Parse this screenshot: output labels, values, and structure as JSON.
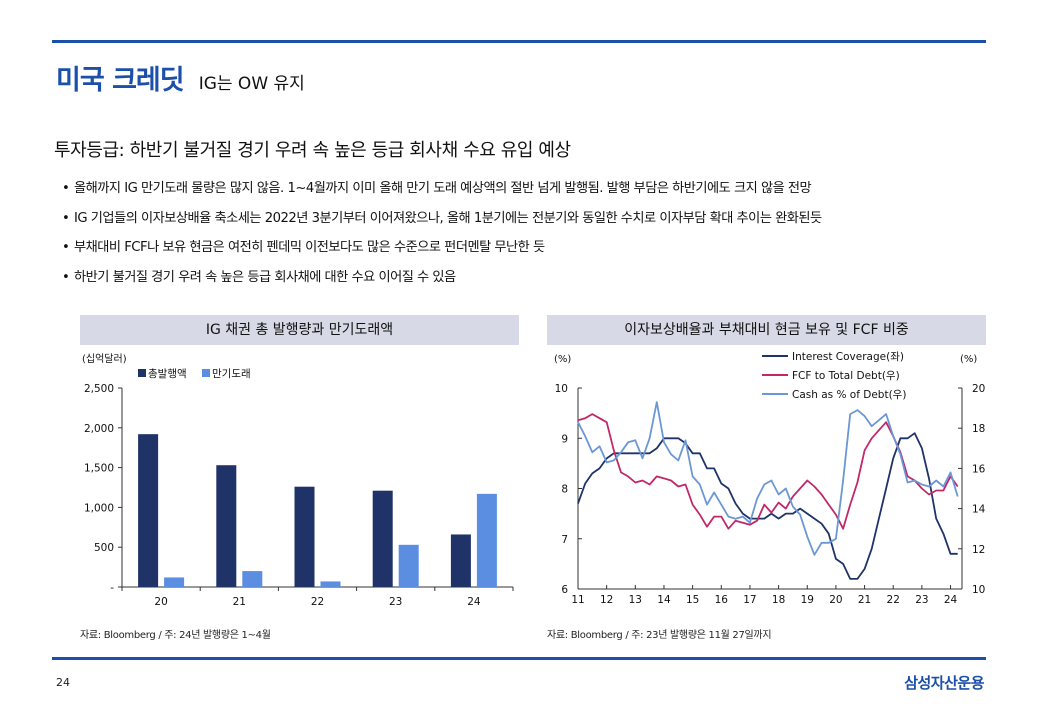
{
  "header": {
    "main_title": "미국 크레딧",
    "sub_title": "IG는 OW 유지"
  },
  "headline": "투자등급: 하반기 불거질 경기 우려 속 높은 등급 회사채 수요 유입 예상",
  "bullets": [
    {
      "marker": "•",
      "text": "올해까지 IG 만기도래 물량은 많지 않음.  1~4월까지 이미 올해 만기 도래 예상액의 절반 넘게 발행됨. 발행 부담은 하반기에도 크지 않을 전망"
    },
    {
      "marker": "•",
      "text": "IG 기업들의 이자보상배율 축소세는 2022년 3분기부터 이어져왔으나, 올해 1분기에는 전분기와 동일한 수치로 이자부담 확대 추이는 완화된듯"
    },
    {
      "marker": "•",
      "text": "부채대비 FCF나 보유 현금은 여전히 펜데믹 이전보다도 많은 수준으로 펀더멘탈 무난한 듯"
    },
    {
      "marker": "•",
      "text": "하반기 불거질 경기 우려 속 높은 등급 회사채에 대한 수요 이어질 수 있음"
    }
  ],
  "colors": {
    "brand_blue": "#1c4fa8",
    "navy": "#1f3368",
    "light_blue": "#5b8ee0",
    "crimson": "#c0286a",
    "steel_blue": "#6b97d4",
    "title_bg": "#d8d9e6"
  },
  "chart_data": [
    {
      "type": "bar",
      "title": "IG 채권 총 발행량과 만기도래액",
      "unit_label": "(십억달러)",
      "categories": [
        "20",
        "21",
        "22",
        "23",
        "24"
      ],
      "series": [
        {
          "name": "총발행액",
          "color": "#1f3368",
          "values": [
            1920,
            1530,
            1260,
            1210,
            660
          ]
        },
        {
          "name": "만기도래",
          "color": "#5b8ee0",
          "values": [
            120,
            200,
            70,
            530,
            1170
          ]
        }
      ],
      "ylim": [
        0,
        2500
      ],
      "yticks": [
        0,
        500,
        1000,
        1500,
        2000,
        2500
      ],
      "ytick_labels": [
        "-",
        "500",
        "1,000",
        "1,500",
        "2,000",
        "2,500"
      ],
      "source": "자료: Bloomberg / 주: 24년 발행량은 1~4월"
    },
    {
      "type": "line",
      "title": "이자보상배율과 부채대비 현금 보유 및 FCF 비중",
      "left_unit": "(%)",
      "right_unit": "(%)",
      "x_range": [
        11,
        24.4
      ],
      "x_ticks": [
        "11",
        "12",
        "13",
        "14",
        "15",
        "16",
        "17",
        "18",
        "19",
        "20",
        "21",
        "22",
        "23",
        "24"
      ],
      "y_left": {
        "range": [
          6,
          10
        ],
        "ticks": [
          "6",
          "7",
          "8",
          "9",
          "10"
        ]
      },
      "y_right": {
        "range": [
          10,
          20
        ],
        "ticks": [
          "10",
          "12",
          "14",
          "16",
          "18",
          "20"
        ]
      },
      "series": [
        {
          "name": "Interest Coverage(좌)",
          "axis": "left",
          "color": "#1f3368",
          "x": [
            11,
            11.25,
            11.5,
            11.75,
            12,
            12.25,
            12.5,
            12.75,
            13,
            13.25,
            13.5,
            13.75,
            14,
            14.25,
            14.5,
            14.75,
            15,
            15.25,
            15.5,
            15.75,
            16,
            16.25,
            16.5,
            16.75,
            17,
            17.25,
            17.5,
            17.75,
            18,
            18.25,
            18.5,
            18.75,
            19,
            19.25,
            19.5,
            19.75,
            20,
            20.25,
            20.5,
            20.75,
            21,
            21.25,
            21.5,
            21.75,
            22,
            22.25,
            22.5,
            22.75,
            23,
            23.25,
            23.5,
            23.75,
            24,
            24.25
          ],
          "values": [
            7.7,
            8.1,
            8.3,
            8.4,
            8.6,
            8.7,
            8.7,
            8.7,
            8.7,
            8.7,
            8.7,
            8.8,
            9.0,
            9.0,
            9.0,
            8.9,
            8.7,
            8.7,
            8.4,
            8.4,
            8.1,
            8.0,
            7.7,
            7.5,
            7.4,
            7.4,
            7.4,
            7.5,
            7.4,
            7.5,
            7.5,
            7.6,
            7.5,
            7.4,
            7.3,
            7.1,
            6.6,
            6.5,
            6.2,
            6.2,
            6.4,
            6.8,
            7.4,
            8.0,
            8.6,
            9.0,
            9.0,
            9.1,
            8.8,
            8.2,
            7.4,
            7.1,
            6.7,
            6.7
          ]
        },
        {
          "name": "FCF to Total Debt(우)",
          "axis": "right",
          "color": "#c0286a",
          "x": [
            11,
            11.25,
            11.5,
            11.75,
            12,
            12.25,
            12.5,
            12.75,
            13,
            13.25,
            13.5,
            13.75,
            14,
            14.25,
            14.5,
            14.75,
            15,
            15.25,
            15.5,
            15.75,
            16,
            16.25,
            16.5,
            16.75,
            17,
            17.25,
            17.5,
            17.75,
            18,
            18.25,
            18.5,
            18.75,
            19,
            19.25,
            19.5,
            19.75,
            20,
            20.25,
            20.5,
            20.75,
            21,
            21.25,
            21.5,
            21.75,
            22,
            22.25,
            22.5,
            22.75,
            23,
            23.25,
            23.5,
            23.75,
            24,
            24.25
          ],
          "values": [
            18.4,
            18.5,
            18.7,
            18.5,
            18.3,
            16.9,
            15.8,
            15.6,
            15.3,
            15.4,
            15.2,
            15.6,
            15.5,
            15.4,
            15.1,
            15.2,
            14.2,
            13.7,
            13.1,
            13.6,
            13.6,
            13.0,
            13.4,
            13.3,
            13.2,
            13.4,
            14.2,
            13.8,
            14.3,
            14.0,
            14.6,
            15.0,
            15.4,
            15.1,
            14.7,
            14.2,
            13.7,
            13.0,
            14.2,
            15.3,
            16.9,
            17.5,
            17.9,
            18.3,
            17.6,
            16.8,
            15.6,
            15.4,
            15.0,
            14.7,
            14.9,
            14.9,
            15.6,
            15.1
          ]
        },
        {
          "name": "Cash as % of Debt(우)",
          "axis": "right",
          "color": "#6b97d4",
          "x": [
            11,
            11.25,
            11.5,
            11.75,
            12,
            12.25,
            12.5,
            12.75,
            13,
            13.25,
            13.5,
            13.75,
            14,
            14.25,
            14.5,
            14.75,
            15,
            15.25,
            15.5,
            15.75,
            16,
            16.25,
            16.5,
            16.75,
            17,
            17.25,
            17.5,
            17.75,
            18,
            18.25,
            18.5,
            18.75,
            19,
            19.25,
            19.5,
            19.75,
            20,
            20.25,
            20.5,
            20.75,
            21,
            21.25,
            21.5,
            21.75,
            22,
            22.25,
            22.5,
            22.75,
            23,
            23.25,
            23.5,
            23.75,
            24,
            24.25
          ],
          "values": [
            18.3,
            17.6,
            16.8,
            17.1,
            16.3,
            16.4,
            16.8,
            17.3,
            17.4,
            16.5,
            17.5,
            19.3,
            17.3,
            16.7,
            16.4,
            17.4,
            15.6,
            15.2,
            14.2,
            14.8,
            14.2,
            13.6,
            13.5,
            13.6,
            13.3,
            14.5,
            15.2,
            15.4,
            14.7,
            15.0,
            14.1,
            13.7,
            12.6,
            11.7,
            12.3,
            12.3,
            12.5,
            15.4,
            18.7,
            18.9,
            18.6,
            18.1,
            18.4,
            18.7,
            17.6,
            16.7,
            15.3,
            15.4,
            15.2,
            15.1,
            15.4,
            15.1,
            15.8,
            14.6
          ]
        }
      ],
      "source": "자료: Bloomberg / 주: 23년 발행량은 11월 27일까지"
    }
  ],
  "footer": {
    "page_number": "24",
    "brand": "삼성자산운용"
  }
}
